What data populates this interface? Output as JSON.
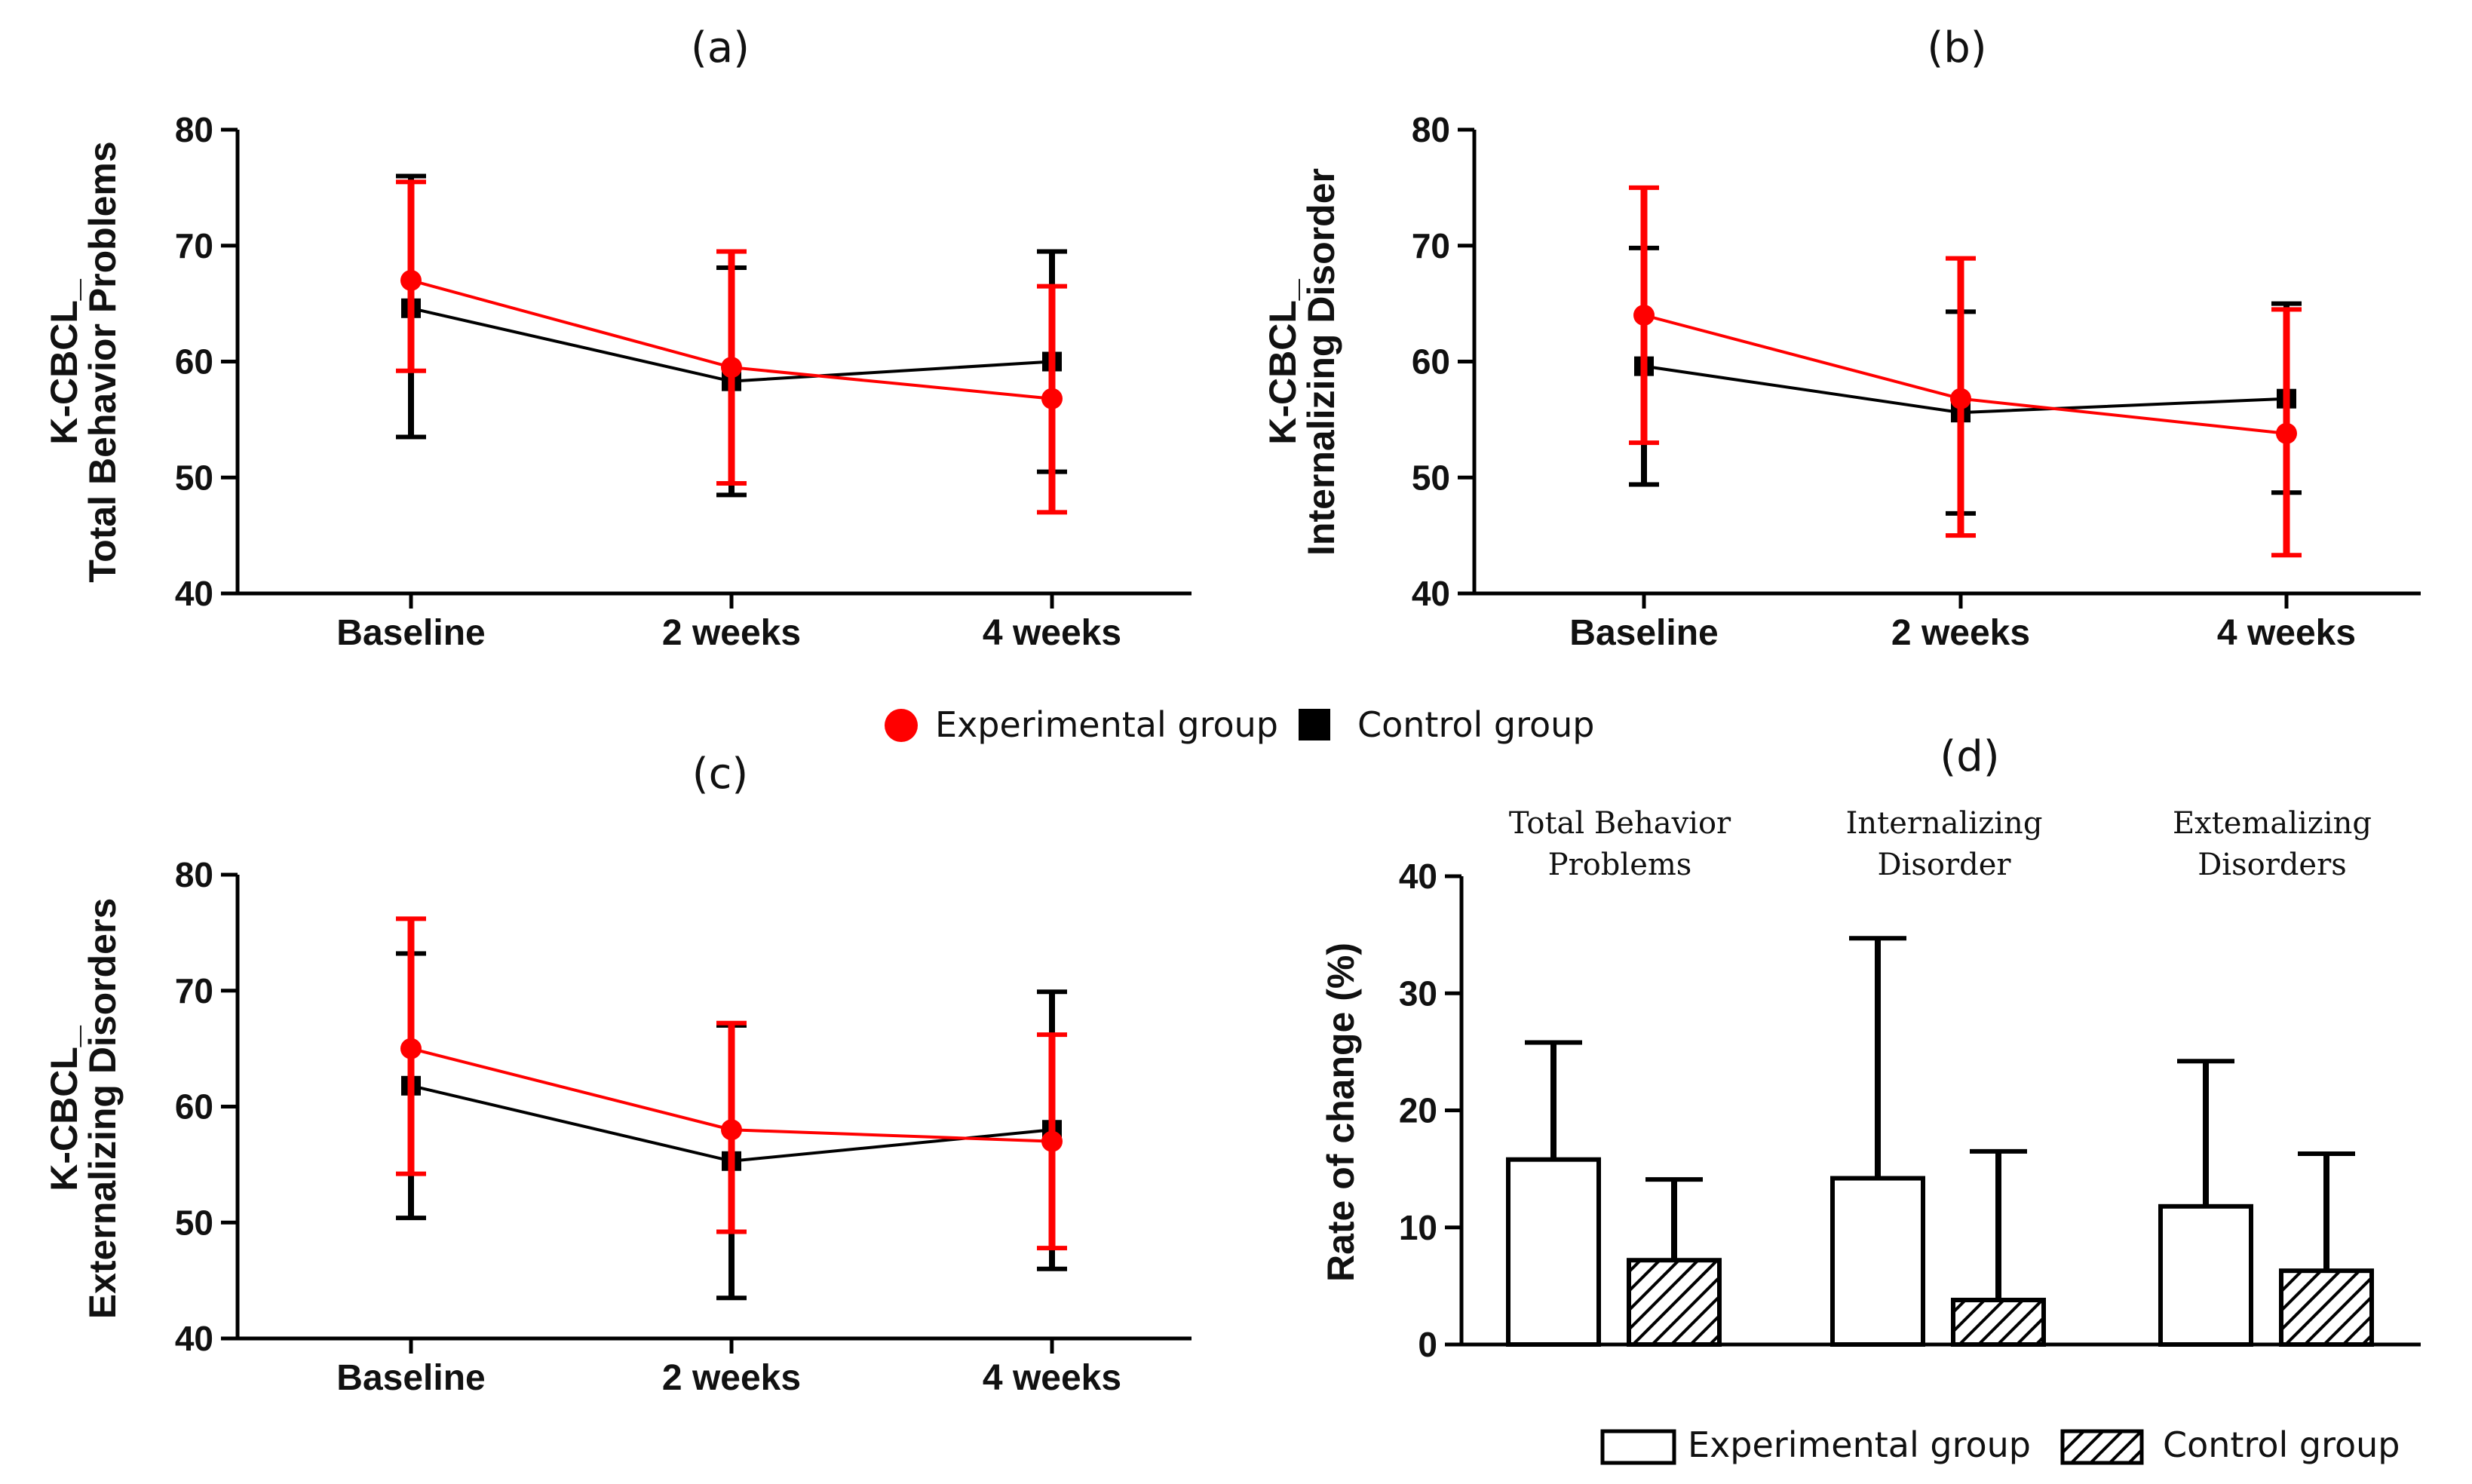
{
  "figure_legend": {
    "experimental": "Experimental group",
    "control": "Control group"
  },
  "bar_legend": {
    "experimental": "Experimental group",
    "control": "Control group"
  },
  "colors": {
    "experimental": "#ff0000",
    "control": "#000000",
    "axis": "#000000"
  },
  "chart_data": [
    {
      "id": "a",
      "type": "line",
      "title": "(a)",
      "ylabel_line1": "K-CBCL_",
      "ylabel_line2": "Total Behavior Problems",
      "categories": [
        "Baseline",
        "2 weeks",
        "4 weeks"
      ],
      "ylim": [
        40,
        80
      ],
      "yticks": [
        40,
        50,
        60,
        70,
        80
      ],
      "series": [
        {
          "name": "Experimental group",
          "key": "experimental",
          "values": [
            67,
            59.5,
            56.8
          ],
          "upper": [
            75.5,
            69.5,
            66.5
          ],
          "lower": [
            59.2,
            49.5,
            47
          ]
        },
        {
          "name": "Control group",
          "key": "control",
          "values": [
            64.6,
            58.3,
            60
          ],
          "upper": [
            76,
            68.1,
            69.5
          ],
          "lower": [
            53.5,
            48.5,
            50.5
          ]
        }
      ]
    },
    {
      "id": "b",
      "type": "line",
      "title": "(b)",
      "ylabel_line1": "K-CBCL_",
      "ylabel_line2": "Internalizing Disorder",
      "categories": [
        "Baseline",
        "2 weeks",
        "4 weeks"
      ],
      "ylim": [
        40,
        80
      ],
      "yticks": [
        40,
        50,
        60,
        70,
        80
      ],
      "series": [
        {
          "name": "Experimental group",
          "key": "experimental",
          "values": [
            64,
            56.8,
            53.8
          ],
          "upper": [
            75,
            68.9,
            64.5
          ],
          "lower": [
            53,
            45,
            43.3
          ]
        },
        {
          "name": "Control group",
          "key": "control",
          "values": [
            59.6,
            55.6,
            56.8
          ],
          "upper": [
            69.8,
            64.3,
            65
          ],
          "lower": [
            49.4,
            46.9,
            48.7
          ]
        }
      ]
    },
    {
      "id": "c",
      "type": "line",
      "title": "(c)",
      "ylabel_line1": "K-CBCL_",
      "ylabel_line2": "Externalizing Disorders",
      "categories": [
        "Baseline",
        "2 weeks",
        "4 weeks"
      ],
      "ylim": [
        40,
        80
      ],
      "yticks": [
        40,
        50,
        60,
        70,
        80
      ],
      "series": [
        {
          "name": "Experimental group",
          "key": "experimental",
          "values": [
            65,
            58,
            57
          ],
          "upper": [
            76.2,
            67.2,
            66.2
          ],
          "lower": [
            54.2,
            49.2,
            47.8
          ]
        },
        {
          "name": "Control group",
          "key": "control",
          "values": [
            61.8,
            55.3,
            58
          ],
          "upper": [
            73.2,
            67,
            69.9
          ],
          "lower": [
            50.4,
            43.5,
            46
          ]
        }
      ]
    },
    {
      "id": "d",
      "type": "bar",
      "title": "(d)",
      "ylabel": "Rate of change (%)",
      "categories": [
        {
          "line1": "Total Behavior",
          "line2": "Problems"
        },
        {
          "line1": "Internalizing",
          "line2": "Disorder"
        },
        {
          "line1": "Extemalizing",
          "line2": "Disorders"
        }
      ],
      "ylim": [
        0,
        40
      ],
      "yticks": [
        0,
        10,
        20,
        30,
        40
      ],
      "series": [
        {
          "name": "Experimental group",
          "key": "experimental",
          "values": [
            15.8,
            14.2,
            11.8
          ],
          "upper": [
            25.8,
            34.7,
            24.2
          ]
        },
        {
          "name": "Control group",
          "key": "control",
          "values": [
            7.2,
            3.8,
            6.3
          ],
          "upper": [
            14.1,
            16.5,
            16.3
          ]
        }
      ]
    }
  ]
}
